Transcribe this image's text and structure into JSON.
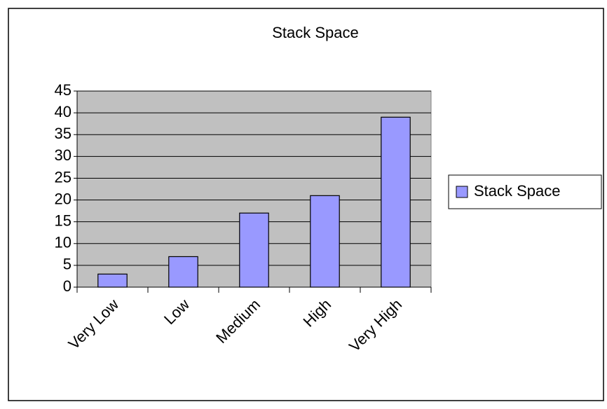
{
  "chart_data": {
    "type": "bar",
    "title": "Stack Space",
    "categories": [
      "Very Low",
      "Low",
      "Medium",
      "High",
      "Very High"
    ],
    "series": [
      {
        "name": "Stack Space",
        "color": "#9999ff",
        "values": [
          3,
          7,
          17,
          21,
          39
        ]
      }
    ],
    "ylim": [
      0,
      45
    ],
    "yticks": [
      0,
      5,
      10,
      15,
      20,
      25,
      30,
      35,
      40,
      45
    ],
    "grid": true,
    "legend": "right"
  }
}
